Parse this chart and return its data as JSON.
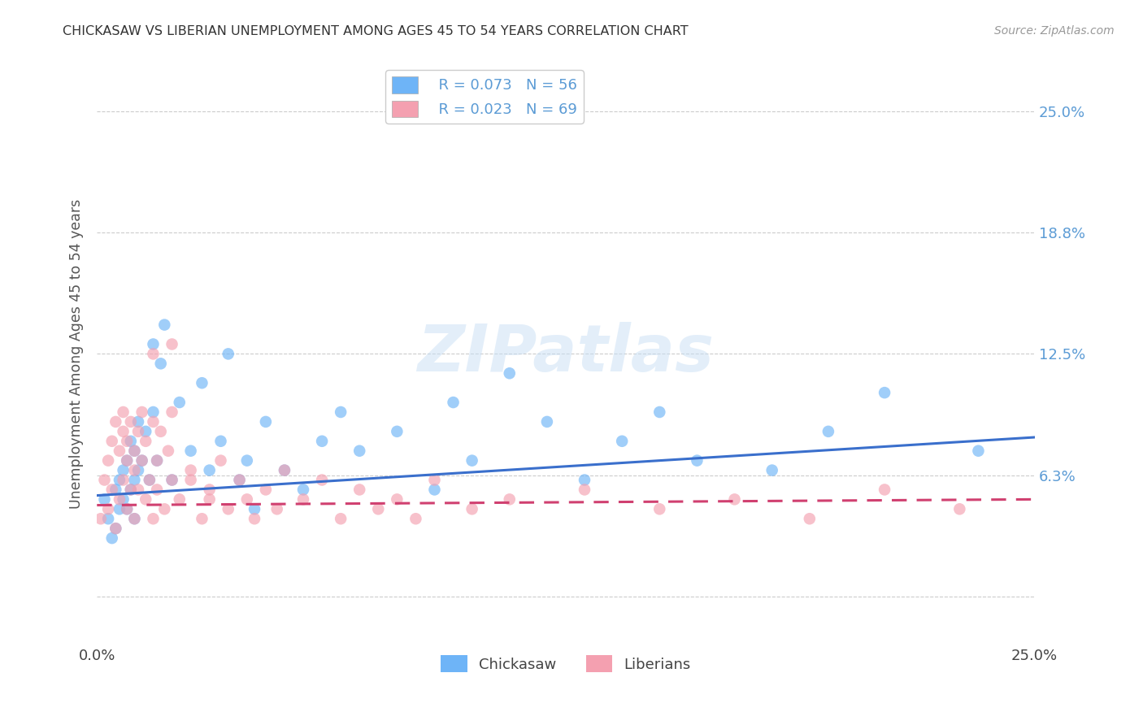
{
  "title": "CHICKASAW VS LIBERIAN UNEMPLOYMENT AMONG AGES 45 TO 54 YEARS CORRELATION CHART",
  "source": "Source: ZipAtlas.com",
  "ylabel": "Unemployment Among Ages 45 to 54 years",
  "xlim": [
    0.0,
    0.25
  ],
  "ylim": [
    -0.025,
    0.275
  ],
  "yticks": [
    0.0,
    0.0625,
    0.125,
    0.1875,
    0.25
  ],
  "ytick_labels": [
    "",
    "6.3%",
    "12.5%",
    "18.8%",
    "25.0%"
  ],
  "chickasaw_R": 0.073,
  "chickasaw_N": 56,
  "liberian_R": 0.023,
  "liberian_N": 69,
  "chickasaw_color": "#6EB4F7",
  "liberian_color": "#F4A0B0",
  "trendline_chickasaw_color": "#3A6FCC",
  "trendline_liberian_color": "#D04070",
  "background_color": "#ffffff",
  "watermark": "ZIPatlas",
  "chickasaw_x": [
    0.002,
    0.003,
    0.004,
    0.005,
    0.005,
    0.006,
    0.006,
    0.007,
    0.007,
    0.008,
    0.008,
    0.009,
    0.009,
    0.01,
    0.01,
    0.01,
    0.011,
    0.011,
    0.012,
    0.013,
    0.014,
    0.015,
    0.015,
    0.016,
    0.017,
    0.018,
    0.02,
    0.022,
    0.025,
    0.028,
    0.03,
    0.033,
    0.035,
    0.038,
    0.04,
    0.042,
    0.045,
    0.05,
    0.055,
    0.06,
    0.065,
    0.07,
    0.08,
    0.09,
    0.095,
    0.1,
    0.11,
    0.12,
    0.13,
    0.14,
    0.15,
    0.16,
    0.18,
    0.195,
    0.21,
    0.235
  ],
  "chickasaw_y": [
    0.05,
    0.04,
    0.03,
    0.055,
    0.035,
    0.045,
    0.06,
    0.05,
    0.065,
    0.045,
    0.07,
    0.055,
    0.08,
    0.06,
    0.04,
    0.075,
    0.09,
    0.065,
    0.07,
    0.085,
    0.06,
    0.095,
    0.13,
    0.07,
    0.12,
    0.14,
    0.06,
    0.1,
    0.075,
    0.11,
    0.065,
    0.08,
    0.125,
    0.06,
    0.07,
    0.045,
    0.09,
    0.065,
    0.055,
    0.08,
    0.095,
    0.075,
    0.085,
    0.055,
    0.1,
    0.07,
    0.115,
    0.09,
    0.06,
    0.08,
    0.095,
    0.07,
    0.065,
    0.085,
    0.105,
    0.075
  ],
  "liberian_x": [
    0.001,
    0.002,
    0.003,
    0.003,
    0.004,
    0.004,
    0.005,
    0.005,
    0.006,
    0.006,
    0.007,
    0.007,
    0.007,
    0.008,
    0.008,
    0.008,
    0.009,
    0.009,
    0.01,
    0.01,
    0.01,
    0.011,
    0.011,
    0.012,
    0.012,
    0.013,
    0.013,
    0.014,
    0.015,
    0.015,
    0.016,
    0.016,
    0.017,
    0.018,
    0.019,
    0.02,
    0.02,
    0.022,
    0.025,
    0.028,
    0.03,
    0.033,
    0.035,
    0.038,
    0.04,
    0.042,
    0.045,
    0.048,
    0.05,
    0.055,
    0.06,
    0.065,
    0.07,
    0.075,
    0.08,
    0.085,
    0.09,
    0.1,
    0.11,
    0.13,
    0.15,
    0.17,
    0.19,
    0.21,
    0.23,
    0.015,
    0.02,
    0.025,
    0.03
  ],
  "liberian_y": [
    0.04,
    0.06,
    0.045,
    0.07,
    0.055,
    0.08,
    0.035,
    0.09,
    0.05,
    0.075,
    0.085,
    0.06,
    0.095,
    0.07,
    0.045,
    0.08,
    0.055,
    0.09,
    0.065,
    0.04,
    0.075,
    0.085,
    0.055,
    0.07,
    0.095,
    0.05,
    0.08,
    0.06,
    0.09,
    0.04,
    0.07,
    0.055,
    0.085,
    0.045,
    0.075,
    0.06,
    0.095,
    0.05,
    0.065,
    0.04,
    0.055,
    0.07,
    0.045,
    0.06,
    0.05,
    0.04,
    0.055,
    0.045,
    0.065,
    0.05,
    0.06,
    0.04,
    0.055,
    0.045,
    0.05,
    0.04,
    0.06,
    0.045,
    0.05,
    0.055,
    0.045,
    0.05,
    0.04,
    0.055,
    0.045,
    0.125,
    0.13,
    0.06,
    0.05
  ],
  "chick_trend_x0": 0.0,
  "chick_trend_y0": 0.052,
  "chick_trend_x1": 0.25,
  "chick_trend_y1": 0.082,
  "lib_trend_x0": 0.0,
  "lib_trend_y0": 0.047,
  "lib_trend_x1": 0.25,
  "lib_trend_y1": 0.05
}
